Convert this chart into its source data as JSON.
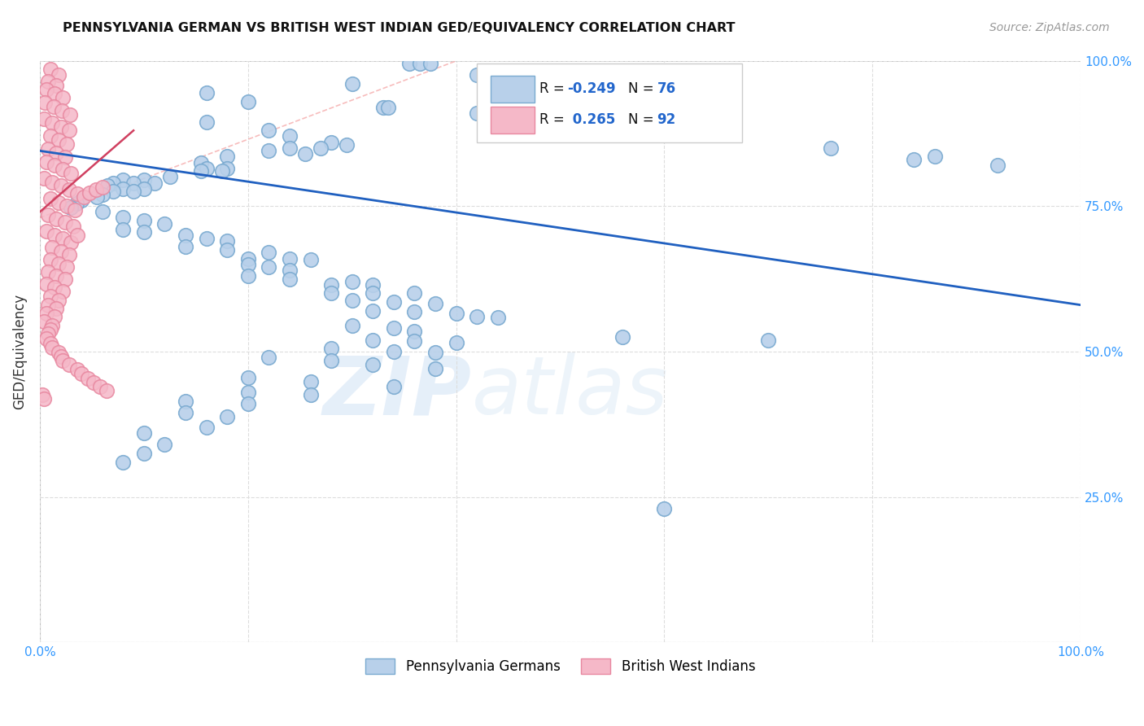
{
  "title": "PENNSYLVANIA GERMAN VS BRITISH WEST INDIAN GED/EQUIVALENCY CORRELATION CHART",
  "source": "Source: ZipAtlas.com",
  "ylabel": "GED/Equivalency",
  "watermark_zip": "ZIP",
  "watermark_atlas": "atlas",
  "xlim": [
    0.0,
    1.0
  ],
  "ylim": [
    0.0,
    1.0
  ],
  "legend_blue_label": "Pennsylvania Germans",
  "legend_pink_label": "British West Indians",
  "blue_color": "#b8d0ea",
  "pink_color": "#f5b8c8",
  "blue_edge_color": "#7aaad0",
  "pink_edge_color": "#e888a0",
  "blue_line_color": "#2060c0",
  "pink_line_color": "#d04060",
  "grid_color": "#dddddd",
  "background_color": "#ffffff",
  "blue_scatter": [
    [
      0.355,
      0.995
    ],
    [
      0.365,
      0.995
    ],
    [
      0.375,
      0.995
    ],
    [
      0.42,
      0.975
    ],
    [
      0.44,
      0.96
    ],
    [
      0.3,
      0.96
    ],
    [
      0.16,
      0.945
    ],
    [
      0.2,
      0.93
    ],
    [
      0.33,
      0.92
    ],
    [
      0.335,
      0.92
    ],
    [
      0.42,
      0.91
    ],
    [
      0.44,
      0.91
    ],
    [
      0.16,
      0.895
    ],
    [
      0.22,
      0.88
    ],
    [
      0.24,
      0.87
    ],
    [
      0.28,
      0.86
    ],
    [
      0.295,
      0.855
    ],
    [
      0.24,
      0.85
    ],
    [
      0.27,
      0.85
    ],
    [
      0.22,
      0.845
    ],
    [
      0.255,
      0.84
    ],
    [
      0.18,
      0.835
    ],
    [
      0.155,
      0.825
    ],
    [
      0.16,
      0.815
    ],
    [
      0.18,
      0.815
    ],
    [
      0.155,
      0.81
    ],
    [
      0.175,
      0.81
    ],
    [
      0.125,
      0.8
    ],
    [
      0.08,
      0.795
    ],
    [
      0.1,
      0.795
    ],
    [
      0.07,
      0.79
    ],
    [
      0.09,
      0.79
    ],
    [
      0.11,
      0.79
    ],
    [
      0.065,
      0.785
    ],
    [
      0.08,
      0.78
    ],
    [
      0.1,
      0.78
    ],
    [
      0.07,
      0.775
    ],
    [
      0.09,
      0.775
    ],
    [
      0.06,
      0.77
    ],
    [
      0.055,
      0.765
    ],
    [
      0.04,
      0.76
    ],
    [
      0.035,
      0.755
    ],
    [
      0.03,
      0.748
    ],
    [
      0.06,
      0.74
    ],
    [
      0.08,
      0.73
    ],
    [
      0.1,
      0.725
    ],
    [
      0.12,
      0.72
    ],
    [
      0.08,
      0.71
    ],
    [
      0.1,
      0.705
    ],
    [
      0.14,
      0.7
    ],
    [
      0.16,
      0.695
    ],
    [
      0.18,
      0.69
    ],
    [
      0.14,
      0.68
    ],
    [
      0.18,
      0.675
    ],
    [
      0.22,
      0.67
    ],
    [
      0.2,
      0.66
    ],
    [
      0.24,
      0.66
    ],
    [
      0.26,
      0.658
    ],
    [
      0.2,
      0.65
    ],
    [
      0.22,
      0.645
    ],
    [
      0.24,
      0.64
    ],
    [
      0.2,
      0.63
    ],
    [
      0.24,
      0.625
    ],
    [
      0.3,
      0.62
    ],
    [
      0.28,
      0.615
    ],
    [
      0.32,
      0.615
    ],
    [
      0.28,
      0.6
    ],
    [
      0.32,
      0.6
    ],
    [
      0.36,
      0.6
    ],
    [
      0.3,
      0.588
    ],
    [
      0.34,
      0.585
    ],
    [
      0.38,
      0.582
    ],
    [
      0.32,
      0.57
    ],
    [
      0.36,
      0.568
    ],
    [
      0.4,
      0.565
    ],
    [
      0.42,
      0.56
    ],
    [
      0.44,
      0.558
    ],
    [
      0.3,
      0.545
    ],
    [
      0.34,
      0.54
    ],
    [
      0.36,
      0.535
    ],
    [
      0.32,
      0.52
    ],
    [
      0.36,
      0.518
    ],
    [
      0.4,
      0.515
    ],
    [
      0.28,
      0.505
    ],
    [
      0.34,
      0.5
    ],
    [
      0.38,
      0.498
    ],
    [
      0.22,
      0.49
    ],
    [
      0.28,
      0.485
    ],
    [
      0.32,
      0.478
    ],
    [
      0.38,
      0.47
    ],
    [
      0.2,
      0.455
    ],
    [
      0.26,
      0.448
    ],
    [
      0.34,
      0.44
    ],
    [
      0.2,
      0.43
    ],
    [
      0.26,
      0.425
    ],
    [
      0.14,
      0.415
    ],
    [
      0.2,
      0.41
    ],
    [
      0.14,
      0.395
    ],
    [
      0.18,
      0.388
    ],
    [
      0.16,
      0.37
    ],
    [
      0.1,
      0.36
    ],
    [
      0.12,
      0.34
    ],
    [
      0.1,
      0.325
    ],
    [
      0.08,
      0.31
    ],
    [
      0.6,
      0.23
    ],
    [
      0.56,
      0.525
    ],
    [
      0.7,
      0.52
    ],
    [
      0.76,
      0.85
    ],
    [
      0.84,
      0.83
    ],
    [
      0.86,
      0.835
    ],
    [
      0.92,
      0.82
    ]
  ],
  "pink_scatter": [
    [
      0.01,
      0.985
    ],
    [
      0.018,
      0.975
    ],
    [
      0.008,
      0.965
    ],
    [
      0.016,
      0.958
    ],
    [
      0.006,
      0.95
    ],
    [
      0.014,
      0.943
    ],
    [
      0.022,
      0.936
    ],
    [
      0.005,
      0.928
    ],
    [
      0.013,
      0.921
    ],
    [
      0.021,
      0.914
    ],
    [
      0.029,
      0.907
    ],
    [
      0.004,
      0.9
    ],
    [
      0.012,
      0.893
    ],
    [
      0.02,
      0.886
    ],
    [
      0.028,
      0.88
    ],
    [
      0.01,
      0.87
    ],
    [
      0.018,
      0.863
    ],
    [
      0.026,
      0.856
    ],
    [
      0.008,
      0.848
    ],
    [
      0.016,
      0.841
    ],
    [
      0.024,
      0.834
    ],
    [
      0.006,
      0.826
    ],
    [
      0.014,
      0.82
    ],
    [
      0.022,
      0.813
    ],
    [
      0.03,
      0.806
    ],
    [
      0.004,
      0.798
    ],
    [
      0.012,
      0.791
    ],
    [
      0.02,
      0.785
    ],
    [
      0.028,
      0.778
    ],
    [
      0.036,
      0.771
    ],
    [
      0.01,
      0.763
    ],
    [
      0.018,
      0.756
    ],
    [
      0.026,
      0.75
    ],
    [
      0.034,
      0.743
    ],
    [
      0.008,
      0.735
    ],
    [
      0.016,
      0.728
    ],
    [
      0.024,
      0.722
    ],
    [
      0.032,
      0.715
    ],
    [
      0.006,
      0.707
    ],
    [
      0.014,
      0.7
    ],
    [
      0.022,
      0.694
    ],
    [
      0.03,
      0.687
    ],
    [
      0.012,
      0.679
    ],
    [
      0.02,
      0.672
    ],
    [
      0.028,
      0.666
    ],
    [
      0.01,
      0.658
    ],
    [
      0.018,
      0.651
    ],
    [
      0.026,
      0.645
    ],
    [
      0.008,
      0.637
    ],
    [
      0.016,
      0.63
    ],
    [
      0.024,
      0.624
    ],
    [
      0.006,
      0.616
    ],
    [
      0.014,
      0.61
    ],
    [
      0.022,
      0.603
    ],
    [
      0.01,
      0.595
    ],
    [
      0.018,
      0.588
    ],
    [
      0.008,
      0.58
    ],
    [
      0.016,
      0.574
    ],
    [
      0.006,
      0.566
    ],
    [
      0.014,
      0.56
    ],
    [
      0.004,
      0.552
    ],
    [
      0.012,
      0.545
    ],
    [
      0.01,
      0.537
    ],
    [
      0.008,
      0.53
    ],
    [
      0.006,
      0.522
    ],
    [
      0.01,
      0.514
    ],
    [
      0.012,
      0.507
    ],
    [
      0.018,
      0.499
    ],
    [
      0.02,
      0.492
    ],
    [
      0.022,
      0.484
    ],
    [
      0.028,
      0.477
    ],
    [
      0.036,
      0.469
    ],
    [
      0.04,
      0.462
    ],
    [
      0.046,
      0.454
    ],
    [
      0.052,
      0.447
    ],
    [
      0.058,
      0.44
    ],
    [
      0.064,
      0.432
    ],
    [
      0.002,
      0.425
    ],
    [
      0.004,
      0.418
    ],
    [
      0.036,
      0.7
    ],
    [
      0.042,
      0.765
    ],
    [
      0.048,
      0.772
    ],
    [
      0.054,
      0.778
    ],
    [
      0.06,
      0.783
    ]
  ],
  "blue_trend": [
    0.0,
    1.0,
    0.845,
    0.58
  ],
  "pink_trend": [
    0.0,
    0.09,
    0.74,
    0.88
  ],
  "pink_dash_trend": [
    0.0,
    0.46,
    0.73,
    1.04
  ]
}
